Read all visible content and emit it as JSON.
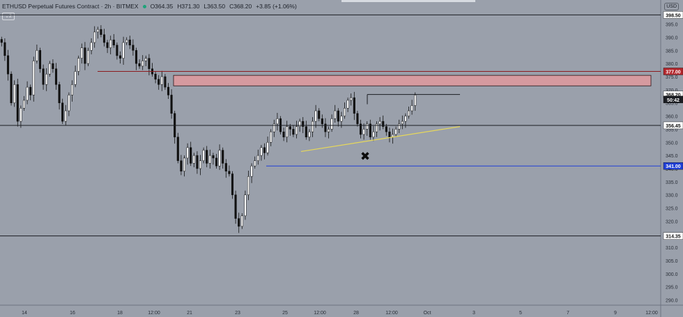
{
  "header": {
    "symbol_title": "ETHUSD Perpetual Futures Contract · 2h · BITMEX",
    "open": "O364.35",
    "high": "H371.30",
    "low": "L363.50",
    "close": "C368.20",
    "change": "+3.85 (+1.06%)",
    "currency": "USD",
    "indicator_toggle": "⌄2"
  },
  "colors": {
    "background": "#9aa0ab",
    "up": "#ffffff",
    "down": "#111111",
    "resistance_zone": "#d69a9f",
    "support_blue": "#1f3fd6",
    "trendline": "#e7d85a"
  },
  "chart_data": {
    "type": "candlestick",
    "ylim": [
      288,
      401
    ],
    "y_ticks": [
      290,
      295,
      300,
      305,
      310,
      315,
      320,
      325,
      330,
      335,
      340,
      345,
      350,
      355,
      360,
      365,
      370,
      375,
      380,
      385,
      390,
      395
    ],
    "x_ticks": [
      "14",
      "16",
      "18",
      "12:00",
      "21",
      "23",
      "25",
      "12:00",
      "28",
      "12:00",
      "Oct",
      "3",
      "5",
      "7",
      "9",
      "12:00"
    ],
    "closes": [
      388,
      383,
      376,
      365,
      372,
      358,
      363,
      366,
      371,
      368,
      381,
      385,
      378,
      372,
      376,
      380,
      378,
      372,
      365,
      358,
      362,
      368,
      372,
      377,
      382,
      386,
      380,
      385,
      388,
      392,
      393,
      391,
      388,
      386,
      389,
      387,
      383,
      382,
      388,
      389,
      387,
      385,
      380,
      379,
      381,
      382,
      378,
      376,
      374,
      372,
      375,
      371,
      368,
      361,
      352,
      343,
      339,
      344,
      348,
      342,
      345,
      340,
      343,
      347,
      342,
      345,
      344,
      341,
      347,
      342,
      339,
      338,
      330,
      321,
      318,
      322,
      330,
      337,
      341,
      343,
      345,
      348,
      346,
      350,
      354,
      357,
      359,
      354,
      352,
      356,
      355,
      353,
      356,
      358,
      356,
      352,
      354,
      358,
      362,
      359,
      357,
      354,
      355,
      359,
      362,
      358,
      360,
      363,
      366,
      367,
      361,
      357,
      353,
      355,
      357,
      352,
      354,
      357,
      358,
      356,
      354,
      352,
      353,
      355,
      357,
      358,
      360,
      362,
      364,
      368
    ],
    "horizontal_levels": [
      {
        "label": "398.50",
        "value": 398.5
      },
      {
        "label": "377.00",
        "value": 377.0
      },
      {
        "label": "368.20",
        "value": 368.2
      },
      {
        "label": "50:42",
        "value": 366.3
      },
      {
        "label": "356.45",
        "value": 356.45
      },
      {
        "label": "341.00",
        "value": 341.0
      },
      {
        "label": "314.35",
        "value": 314.35
      }
    ],
    "resistance_zone": {
      "low": 371.5,
      "high": 375.5
    },
    "trendline": {
      "from": 346.5,
      "to": 356.0
    },
    "marker": "✖"
  }
}
